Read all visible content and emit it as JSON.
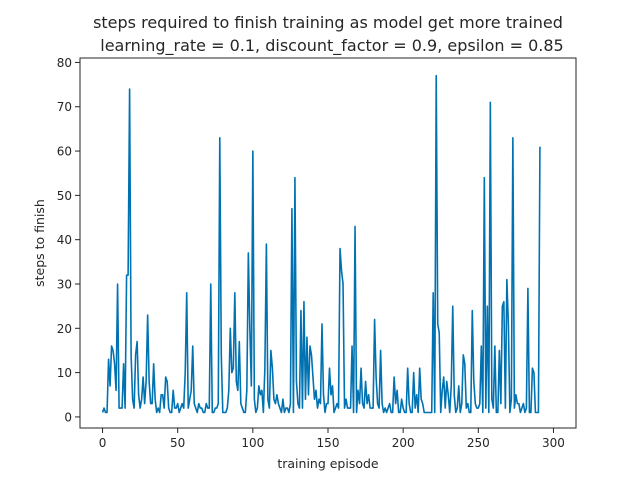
{
  "chart_data": {
    "type": "line",
    "title_line1": "steps required to finish training as model get more trained",
    "title_line2": "learning_rate = 0.1, discount_factor = 0.9, epsilon = 0.85",
    "xlabel": "training episode",
    "ylabel": "steps to finish",
    "xlim": [
      -15,
      315
    ],
    "ylim": [
      -2.5,
      81
    ],
    "xticks": [
      0,
      50,
      100,
      150,
      200,
      250,
      300
    ],
    "yticks": [
      0,
      10,
      20,
      30,
      40,
      50,
      60,
      70,
      80
    ],
    "grid": false,
    "color": "#0072b2",
    "series": [
      {
        "values": [
          1,
          2,
          1,
          1,
          13,
          7,
          16,
          15,
          12,
          6,
          30,
          2,
          2,
          2,
          12,
          2,
          32,
          32,
          74,
          14,
          4,
          2,
          14,
          17,
          5,
          2,
          4,
          9,
          3,
          8,
          23,
          8,
          3,
          3,
          12,
          4,
          1,
          2,
          1,
          5,
          5,
          2,
          9,
          8,
          2,
          1,
          1,
          6,
          2,
          2,
          3,
          1,
          2,
          3,
          2,
          10,
          28,
          2,
          4,
          6,
          16,
          3,
          2,
          1,
          3,
          2,
          2,
          1,
          1,
          3,
          2,
          2,
          30,
          1,
          1,
          2,
          2,
          3,
          63,
          14,
          1,
          1,
          1,
          2,
          6,
          20,
          10,
          11,
          28,
          8,
          6,
          17,
          3,
          2,
          1,
          1,
          6,
          37,
          20,
          7,
          60,
          4,
          1,
          2,
          7,
          5,
          6,
          1,
          11,
          39,
          4,
          2,
          15,
          11,
          4,
          3,
          5,
          3,
          2,
          1,
          4,
          1,
          2,
          2,
          1,
          3,
          47,
          1,
          54,
          8,
          3,
          2,
          24,
          2,
          26,
          4,
          18,
          5,
          16,
          14,
          9,
          4,
          6,
          2,
          4,
          3,
          21,
          5,
          1,
          3,
          3,
          11,
          5,
          7,
          1,
          2,
          3,
          2,
          38,
          33,
          30,
          2,
          4,
          2,
          2,
          2,
          16,
          1,
          43,
          1,
          6,
          3,
          11,
          3,
          2,
          8,
          3,
          5,
          2,
          2,
          2,
          22,
          9,
          3,
          2,
          15,
          3,
          1,
          2,
          1,
          2,
          3,
          1,
          1,
          9,
          3,
          6,
          1,
          1,
          4,
          2,
          1,
          1,
          11,
          3,
          1,
          1,
          10,
          2,
          5,
          1,
          11,
          4,
          3,
          1,
          1,
          1,
          1,
          1,
          1,
          28,
          1,
          77,
          21,
          19,
          1,
          6,
          9,
          2,
          8,
          5,
          1,
          7,
          25,
          5,
          1,
          2,
          7,
          1,
          3,
          14,
          12,
          2,
          3,
          1,
          1,
          24,
          8,
          3,
          2,
          2,
          3,
          16,
          1,
          54,
          2,
          25,
          1,
          71,
          4,
          2,
          16,
          1,
          1,
          15,
          3,
          25,
          26,
          2,
          31,
          21,
          1,
          4,
          63,
          2,
          5,
          3,
          3,
          1,
          2,
          3,
          1,
          2,
          29,
          1,
          1,
          11,
          10,
          1,
          1,
          1,
          61
        ]
      }
    ]
  }
}
